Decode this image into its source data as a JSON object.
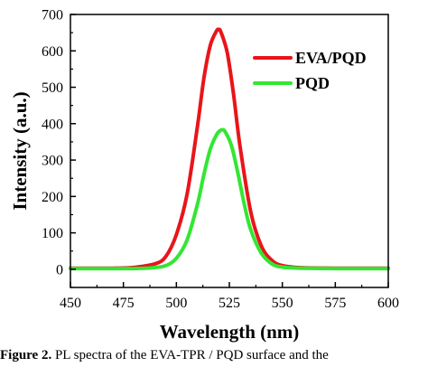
{
  "chart_data": {
    "type": "line",
    "xlabel": "Wavelength (nm)",
    "ylabel": "Intensity (a.u.)",
    "xlim": [
      450,
      600
    ],
    "ylim": [
      -50,
      700
    ],
    "xticks": [
      450,
      475,
      500,
      525,
      550,
      575,
      600
    ],
    "yticks": [
      0,
      100,
      200,
      300,
      400,
      500,
      600,
      700
    ],
    "grid": false,
    "legend_position": "top-right",
    "series": [
      {
        "name": "EVA/PQD",
        "color": "#e8151b",
        "x": [
          450,
          470,
          480,
          490,
          495,
          500,
          505,
          510,
          513,
          516,
          519,
          520,
          521,
          524,
          527,
          530,
          535,
          540,
          545,
          550,
          560,
          575,
          600
        ],
        "y": [
          3,
          3,
          5,
          15,
          35,
          95,
          205,
          395,
          525,
          615,
          655,
          658,
          652,
          595,
          480,
          340,
          160,
          65,
          25,
          10,
          4,
          3,
          3
        ]
      },
      {
        "name": "PQD",
        "color": "#33e633",
        "x": [
          450,
          480,
          490,
          495,
          500,
          505,
          510,
          513,
          516,
          519,
          521,
          522,
          523,
          526,
          529,
          532,
          535,
          540,
          545,
          550,
          560,
          575,
          600
        ],
        "y": [
          2,
          2,
          5,
          10,
          30,
          80,
          180,
          260,
          330,
          370,
          382,
          383,
          378,
          340,
          265,
          180,
          110,
          45,
          15,
          6,
          3,
          2,
          2
        ]
      }
    ]
  },
  "caption": {
    "label": "Figure 2.",
    "text": " PL spectra of the EVA-TPR / PQD surface and the"
  }
}
